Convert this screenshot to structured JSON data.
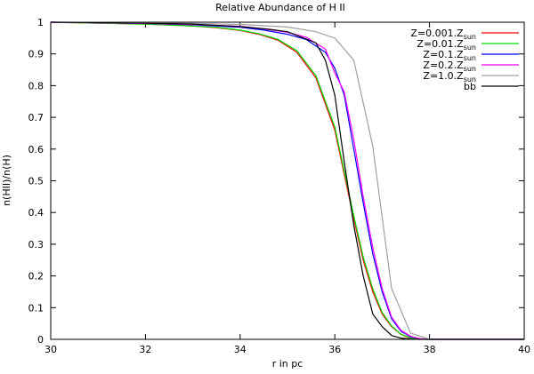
{
  "chart_data": {
    "type": "line",
    "title": "Relative Abundance of H II",
    "xlabel": "r in pc",
    "ylabel": "n(HII)/n(H)",
    "xlim": [
      30,
      40
    ],
    "ylim": [
      0,
      1
    ],
    "xticks": [
      30,
      32,
      34,
      36,
      38,
      40
    ],
    "yticks": [
      0,
      0.1,
      0.2,
      0.3,
      0.4,
      0.5,
      0.6,
      0.7,
      0.8,
      0.9,
      1
    ],
    "grid": false,
    "legend_position": "top-right",
    "series": [
      {
        "name": "Z=0.001.Z",
        "name_sub": "sun",
        "color": "#ff0000",
        "x": [
          30,
          31,
          32,
          33,
          33.5,
          34,
          34.4,
          34.8,
          35.2,
          35.6,
          36,
          36.2,
          36.4,
          36.6,
          36.8,
          37,
          37.2,
          37.4,
          37.6,
          37.8,
          38,
          39,
          40
        ],
        "y": [
          1,
          0.997,
          0.994,
          0.988,
          0.983,
          0.974,
          0.962,
          0.943,
          0.905,
          0.825,
          0.66,
          0.52,
          0.38,
          0.25,
          0.15,
          0.08,
          0.04,
          0.015,
          0.004,
          0.001,
          0,
          0,
          0
        ]
      },
      {
        "name": "Z=0.01.Z",
        "name_sub": "sun",
        "color": "#00dd00",
        "x": [
          30,
          31,
          32,
          33,
          33.5,
          34,
          34.4,
          34.8,
          35.2,
          35.6,
          36,
          36.2,
          36.4,
          36.6,
          36.8,
          37,
          37.2,
          37.4,
          37.6,
          37.8,
          38,
          39,
          40
        ],
        "y": [
          1,
          0.997,
          0.994,
          0.988,
          0.984,
          0.975,
          0.964,
          0.946,
          0.91,
          0.832,
          0.67,
          0.53,
          0.39,
          0.26,
          0.16,
          0.085,
          0.042,
          0.016,
          0.005,
          0.001,
          0,
          0,
          0
        ]
      },
      {
        "name": "Z=0.1.Z",
        "name_sub": "sun",
        "color": "#0000ff",
        "x": [
          30,
          31,
          32,
          33,
          34,
          34.5,
          35,
          35.4,
          35.8,
          36,
          36.2,
          36.4,
          36.6,
          36.8,
          37,
          37.2,
          37.4,
          37.6,
          37.8,
          38,
          39,
          40
        ],
        "y": [
          1,
          0.998,
          0.996,
          0.992,
          0.984,
          0.975,
          0.962,
          0.945,
          0.905,
          0.855,
          0.77,
          0.6,
          0.43,
          0.27,
          0.15,
          0.065,
          0.025,
          0.008,
          0.002,
          0,
          0,
          0
        ]
      },
      {
        "name": "Z=0.2.Z",
        "name_sub": "sun",
        "color": "#ff00ff",
        "x": [
          30,
          31,
          32,
          33,
          34,
          34.5,
          35,
          35.4,
          35.8,
          36,
          36.2,
          36.4,
          36.6,
          36.8,
          37,
          37.2,
          37.4,
          37.6,
          37.8,
          38,
          39,
          40
        ],
        "y": [
          1,
          0.998,
          0.996,
          0.993,
          0.987,
          0.979,
          0.968,
          0.952,
          0.915,
          0.84,
          0.78,
          0.63,
          0.45,
          0.29,
          0.16,
          0.07,
          0.028,
          0.01,
          0.002,
          0,
          0,
          0
        ]
      },
      {
        "name": "Z=1.0.Z",
        "name_sub": "sun",
        "color": "#a0a0a0",
        "x": [
          30,
          31,
          32,
          33,
          34,
          35,
          35.6,
          36,
          36.4,
          36.8,
          37.2,
          37.6,
          38,
          39,
          40
        ],
        "y": [
          1,
          0.999,
          0.998,
          0.996,
          0.993,
          0.985,
          0.97,
          0.95,
          0.88,
          0.61,
          0.16,
          0.02,
          0,
          0,
          0
        ]
      },
      {
        "name": "bb",
        "name_sub": "",
        "color": "#000000",
        "x": [
          30,
          31,
          32,
          33,
          34,
          34.6,
          35,
          35.6,
          35.8,
          36,
          36.2,
          36.4,
          36.6,
          36.8,
          37,
          37.2,
          37.4,
          37.6,
          37.8,
          38,
          39,
          40
        ],
        "y": [
          1,
          0.999,
          0.997,
          0.994,
          0.986,
          0.978,
          0.97,
          0.935,
          0.88,
          0.77,
          0.56,
          0.36,
          0.2,
          0.08,
          0.04,
          0.012,
          0.004,
          0.001,
          0,
          0,
          0,
          0
        ]
      }
    ]
  }
}
